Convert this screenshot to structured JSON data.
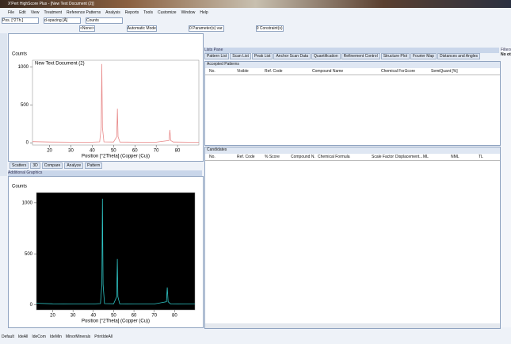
{
  "window": {
    "title": "X'Pert HighScore Plus - [New Text Document (2)]"
  },
  "menu": [
    "File",
    "Edit",
    "View",
    "Treatment",
    "Reference Patterns",
    "Analysis",
    "Reports",
    "Tools",
    "Customize",
    "Window",
    "Help"
  ],
  "fields": [
    "Pos. [°2Th.]",
    "d-spacing [Å]",
    "Counts"
  ],
  "toolbar": [
    "<None>",
    "Automatic Mode",
    "0 Parameter(s) var.",
    "0 Constraint(s)"
  ],
  "plots": [
    {
      "type": "line",
      "title": "New Text Document (2)",
      "ylabel": "Counts",
      "xlabel": "Position [°2Theta] (Copper (Cu))",
      "xlim": [
        12,
        90
      ],
      "ylim": [
        -30,
        1090
      ],
      "xticks": [
        20,
        30,
        40,
        50,
        60,
        70,
        80
      ],
      "yticks": [
        0,
        500,
        1000
      ],
      "color": "#e88a8a",
      "background": "#ffffff",
      "x": [
        12,
        20,
        30,
        40,
        43.5,
        44.2,
        44.5,
        44.8,
        45.5,
        50,
        51.5,
        51.8,
        52.1,
        53,
        60,
        70,
        76,
        76.4,
        76.8,
        78,
        85,
        90
      ],
      "y": [
        15,
        10,
        8,
        8,
        12,
        200,
        1040,
        200,
        12,
        10,
        80,
        450,
        80,
        10,
        8,
        8,
        30,
        170,
        30,
        10,
        8,
        8
      ]
    },
    {
      "type": "line",
      "ylabel": "Counts",
      "xlabel": "Position [°2Theta] (Copper (Cu))",
      "xlim": [
        12,
        90
      ],
      "ylim": [
        -50,
        1100
      ],
      "xticks": [
        20,
        30,
        40,
        50,
        60,
        70,
        80
      ],
      "yticks": [
        0,
        500,
        1000
      ],
      "color": "#2fc4c4",
      "background": "#000000",
      "x": [
        12,
        20,
        30,
        40,
        43.5,
        44.2,
        44.5,
        44.8,
        45.5,
        50,
        51.5,
        51.8,
        52.1,
        53,
        60,
        70,
        76,
        76.4,
        76.8,
        78,
        85,
        90
      ],
      "y": [
        15,
        10,
        8,
        8,
        12,
        200,
        1040,
        200,
        12,
        10,
        80,
        450,
        80,
        10,
        8,
        8,
        30,
        170,
        30,
        10,
        8,
        8
      ]
    }
  ],
  "graphics_tabs": [
    "Scatters",
    "3D",
    "Compare",
    "Analyze",
    "Pattern"
  ],
  "additional_title": "Additional Graphics",
  "lists": {
    "title": "Lists Pane",
    "tabs": [
      "Pattern List",
      "Scan List",
      "Peak List",
      "Anchor Scan Data",
      "Quantification",
      "Refinement Control",
      "Structure Plot",
      "Fourier Map",
      "Distances and Angles"
    ],
    "accepted": {
      "title": "Accepted Patterns",
      "columns": [
        "No.",
        "Visible",
        "Ref. Code",
        "Compound Name",
        "Chemical For.",
        "Score",
        "SemiQuant [%]"
      ]
    },
    "candidates": {
      "title": "Candidates",
      "columns": [
        "No.",
        "Ref. Code",
        "% Score",
        "Compound N.",
        "Chemical Formula",
        "Scale Factor",
        "Displacement...",
        "ML",
        "NML",
        "TL"
      ]
    }
  },
  "filters": {
    "title": "Filters",
    "text": "No ot"
  },
  "status": [
    "Default",
    "IdeAll",
    "IdeCom",
    "IdeMin",
    "MinorMinerals",
    "PrintIdeAll"
  ]
}
